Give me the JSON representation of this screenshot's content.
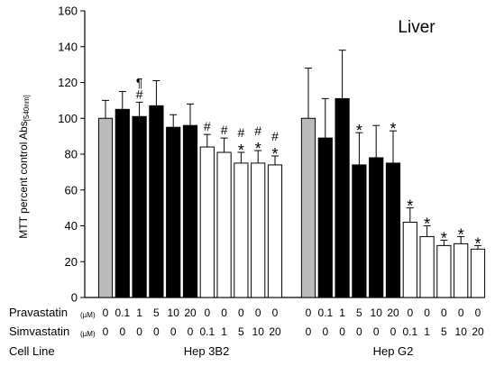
{
  "chart_data": {
    "type": "bar",
    "title": "",
    "panel_label": "Liver",
    "ylabel_main": "MTT percent control Abs",
    "ylabel_sub": "[540nm]",
    "xlabel": "",
    "ylim": [
      0,
      160
    ],
    "yticks": [
      0,
      20,
      40,
      60,
      80,
      100,
      120,
      140,
      160
    ],
    "grid": false,
    "legend": "none",
    "colors": {
      "control": "#bbbbbb",
      "pravastatin": "#000000",
      "simvastatin": "#ffffff",
      "outline": "#000000"
    },
    "table": {
      "row_labels": [
        "Pravastatin",
        "Simvastatin",
        "Cell Line"
      ],
      "unit": "(µM)"
    },
    "groups": [
      {
        "cell_line": "Hep 3B2",
        "bars": [
          {
            "pravastatin": "0",
            "simvastatin": "0",
            "value": 100,
            "error": 10,
            "fill": "control",
            "markers": []
          },
          {
            "pravastatin": "0.1",
            "simvastatin": "0",
            "value": 105,
            "error": 10,
            "fill": "pravastatin",
            "markers": []
          },
          {
            "pravastatin": "1",
            "simvastatin": "0",
            "value": 101,
            "error": 8,
            "fill": "pravastatin",
            "markers": [
              "¶",
              "#"
            ]
          },
          {
            "pravastatin": "5",
            "simvastatin": "0",
            "value": 107,
            "error": 14,
            "fill": "pravastatin",
            "markers": []
          },
          {
            "pravastatin": "10",
            "simvastatin": "0",
            "value": 95,
            "error": 7,
            "fill": "pravastatin",
            "markers": []
          },
          {
            "pravastatin": "20",
            "simvastatin": "0",
            "value": 96,
            "error": 12,
            "fill": "pravastatin",
            "markers": []
          },
          {
            "pravastatin": "0",
            "simvastatin": "0.1",
            "value": 84,
            "error": 7,
            "fill": "simvastatin",
            "markers": [
              "#"
            ]
          },
          {
            "pravastatin": "0",
            "simvastatin": "1",
            "value": 81,
            "error": 8,
            "fill": "simvastatin",
            "markers": [
              "#"
            ]
          },
          {
            "pravastatin": "0",
            "simvastatin": "5",
            "value": 75,
            "error": 6,
            "fill": "simvastatin",
            "markers": [
              "#",
              "*"
            ]
          },
          {
            "pravastatin": "0",
            "simvastatin": "10",
            "value": 75,
            "error": 7,
            "fill": "simvastatin",
            "markers": [
              "#",
              "*"
            ]
          },
          {
            "pravastatin": "0",
            "simvastatin": "20",
            "value": 74,
            "error": 5,
            "fill": "simvastatin",
            "markers": [
              "#",
              "*"
            ]
          }
        ]
      },
      {
        "cell_line": "Hep G2",
        "bars": [
          {
            "pravastatin": "0",
            "simvastatin": "0",
            "value": 100,
            "error": 28,
            "fill": "control",
            "markers": []
          },
          {
            "pravastatin": "0.1",
            "simvastatin": "0",
            "value": 89,
            "error": 22,
            "fill": "pravastatin",
            "markers": []
          },
          {
            "pravastatin": "1",
            "simvastatin": "0",
            "value": 111,
            "error": 27,
            "fill": "pravastatin",
            "markers": []
          },
          {
            "pravastatin": "5",
            "simvastatin": "0",
            "value": 74,
            "error": 18,
            "fill": "pravastatin",
            "markers": [
              "*"
            ]
          },
          {
            "pravastatin": "10",
            "simvastatin": "0",
            "value": 78,
            "error": 18,
            "fill": "pravastatin",
            "markers": []
          },
          {
            "pravastatin": "20",
            "simvastatin": "0",
            "value": 75,
            "error": 18,
            "fill": "pravastatin",
            "markers": [
              "*"
            ]
          },
          {
            "pravastatin": "0",
            "simvastatin": "0.1",
            "value": 42,
            "error": 8,
            "fill": "simvastatin",
            "markers": [
              "*"
            ]
          },
          {
            "pravastatin": "0",
            "simvastatin": "1",
            "value": 34,
            "error": 6,
            "fill": "simvastatin",
            "markers": [
              "*"
            ]
          },
          {
            "pravastatin": "0",
            "simvastatin": "5",
            "value": 29,
            "error": 3,
            "fill": "simvastatin",
            "markers": [
              "*"
            ]
          },
          {
            "pravastatin": "0",
            "simvastatin": "10",
            "value": 30,
            "error": 4,
            "fill": "simvastatin",
            "markers": [
              "*"
            ]
          },
          {
            "pravastatin": "0",
            "simvastatin": "20",
            "value": 27,
            "error": 2,
            "fill": "simvastatin",
            "markers": [
              "*"
            ]
          }
        ]
      }
    ]
  }
}
